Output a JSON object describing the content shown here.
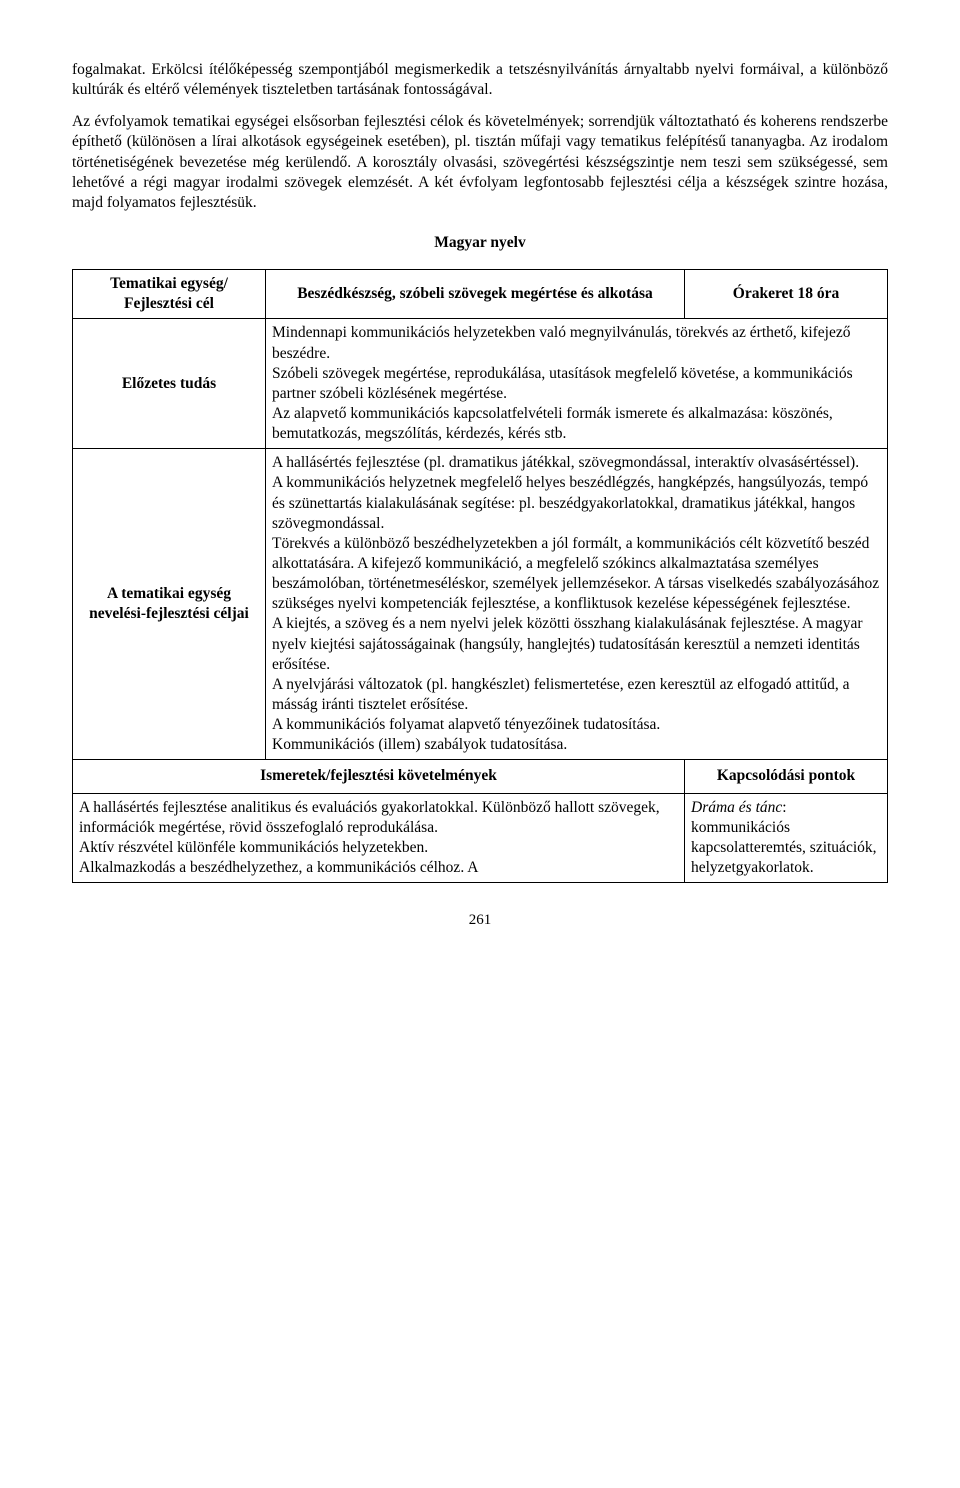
{
  "para1": "fogalmakat. Erkölcsi ítélőképesség szempontjából megismerkedik a tetszésnyilvánítás árnyaltabb nyelvi formáival, a különböző kultúrák és eltérő vélemények tiszteletben tartásának fontosságával.",
  "para2": "Az évfolyamok tematikai egységei elsősorban fejlesztési célok és követelmények; sorrendjük változtatható és koherens rendszerbe építhető (különösen a lírai alkotások egységeinek esetében), pl. tisztán műfaji vagy tematikus felépítésű tananyagba. Az irodalom történetiségének bevezetése még kerülendő. A korosztály olvasási, szövegértési készségszintje nem teszi sem szükségessé, sem lehetővé a régi magyar irodalmi szövegek elemzését. A két évfolyam legfontosabb fejlesztési célja a készségek szintre hozása, majd folyamatos fejlesztésük.",
  "sectionTitle": "Magyar nyelv",
  "row1": {
    "left": "Tematikai egység/ Fejlesztési cél",
    "mid": "Beszédkészség, szóbeli szövegek megértése és alkotása",
    "right": "Órakeret 18 óra"
  },
  "row2": {
    "left": "Előzetes tudás",
    "content": "Mindennapi kommunikációs helyzetekben való megnyilvánulás, törekvés az érthető, kifejező beszédre.\nSzóbeli szövegek megértése, reprodukálása, utasítások megfelelő követése, a kommunikációs partner szóbeli közlésének megértése.\nAz alapvető kommunikációs kapcsolatfelvételi formák ismerete és alkalmazása: köszönés, bemutatkozás, megszólítás, kérdezés, kérés stb."
  },
  "row3": {
    "left": "A tematikai egység nevelési-fejlesztési céljai",
    "content": "A hallásértés fejlesztése (pl. dramatikus játékkal, szövegmondással, interaktív olvasásértéssel).\nA kommunikációs helyzetnek megfelelő helyes beszédlégzés, hangképzés, hangsúlyozás, tempó és szünettartás kialakulásának segítése: pl. beszédgyakorlatokkal, dramatikus játékkal, hangos szövegmondással.\nTörekvés a különböző beszédhelyzetekben a jól formált, a kommunikációs célt közvetítő beszéd alkottatására. A kifejező kommunikáció, a megfelelő szókincs alkalmaztatása személyes beszámolóban, történetmeséléskor, személyek jellemzésekor. A társas viselkedés szabályozásához szükséges nyelvi kompetenciák fejlesztése, a konfliktusok kezelése képességének fejlesztése.\nA kiejtés, a szöveg és a nem nyelvi jelek közötti összhang kialakulásának fejlesztése. A magyar nyelv kiejtési sajátosságainak (hangsúly, hanglejtés) tudatosításán keresztül a nemzeti identitás erősítése.\nA nyelvjárási változatok (pl. hangkészlet) felismertetése, ezen keresztül az elfogadó attitűd, a másság iránti tisztelet erősítése.\nA kommunikációs folyamat alapvető tényezőinek tudatosítása.\nKommunikációs (illem) szabályok tudatosítása."
  },
  "row4": {
    "left": "Ismeretek/fejlesztési követelmények",
    "right": "Kapcsolódási pontok"
  },
  "row5": {
    "left": "A hallásértés fejlesztése analitikus és evaluációs gyakorlatokkal. Különböző hallott szövegek, információk megértése, rövid összefoglaló reprodukálása.\nAktív részvétel különféle kommunikációs helyzetekben.\nAlkalmazkodás a beszédhelyzethez, a kommunikációs célhoz. A",
    "rightItalic": "Dráma és tánc",
    "rightRest": ": kommunikációs kapcsolatteremtés, szituációk, helyzetgyakorlatok."
  },
  "pageNum": "261"
}
